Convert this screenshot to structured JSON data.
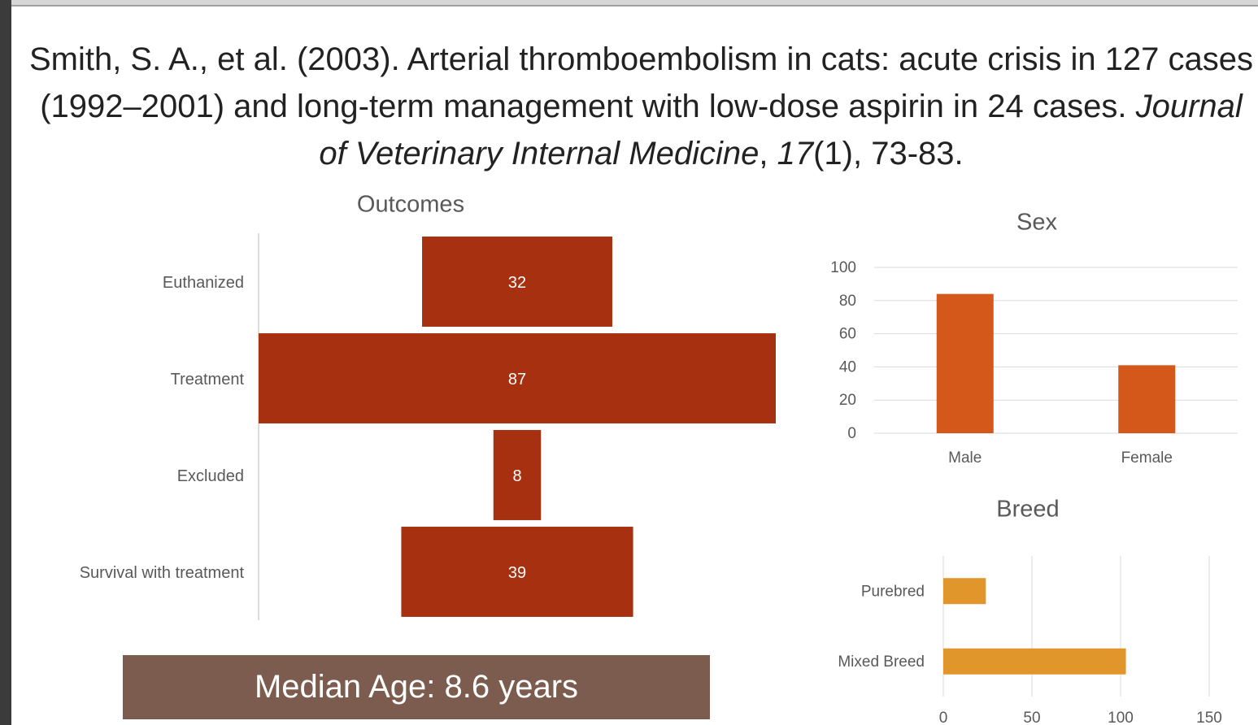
{
  "citation": [
    {
      "text": "Smith, S. A., et al. (2003). Arterial thromboembolism in cats: acute crisis in 127 cases (1992–2001) and long-term management with low-dose aspirin in 24 cases. ",
      "italic": false
    },
    {
      "text": "Journal of Veterinary Internal Medicine",
      "italic": true
    },
    {
      "text": ", ",
      "italic": false
    },
    {
      "text": "17",
      "italic": true
    },
    {
      "text": "(1), 73-83.",
      "italic": false
    }
  ],
  "callout": "Median Age: 8.6 years",
  "chart_data": [
    {
      "type": "funnel",
      "title": "Outcomes",
      "categories": [
        "Euthanized",
        "Treatment",
        "Excluded",
        "Survival with treatment"
      ],
      "values": [
        32,
        87,
        8,
        39
      ],
      "color": "#a63010"
    },
    {
      "type": "bar",
      "title": "Sex",
      "categories": [
        "Male",
        "Female"
      ],
      "values": [
        84,
        41
      ],
      "color": "#d4581a",
      "ylim": [
        0,
        100
      ],
      "yticks": [
        0,
        20,
        40,
        60,
        80,
        100
      ],
      "grid": true
    },
    {
      "type": "hbar",
      "title": "Breed",
      "categories": [
        "Purebred",
        "Mixed Breed"
      ],
      "values": [
        24,
        103
      ],
      "color": "#e0962a",
      "xlim": [
        0,
        150
      ],
      "xticks": [
        0,
        50,
        100,
        150
      ],
      "grid": true
    }
  ]
}
